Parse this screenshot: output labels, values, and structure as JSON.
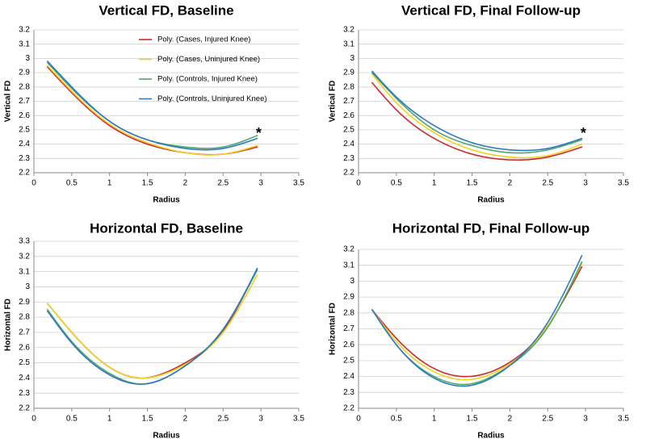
{
  "chart_data": [
    {
      "type": "line",
      "title": "Vertical FD, Baseline",
      "xlabel": "Radius",
      "ylabel": "Vertical FD",
      "xlim": [
        0,
        3.5
      ],
      "ylim": [
        2.2,
        3.2
      ],
      "xticks": [
        0,
        0.5,
        1,
        1.5,
        2,
        2.5,
        3,
        3.5
      ],
      "xtick_labels": [
        "0",
        "0.5",
        "1",
        "1.5",
        "2",
        "2.5",
        "3",
        "3.5"
      ],
      "yticks": [
        2.2,
        2.3,
        2.4,
        2.5,
        2.6,
        2.7,
        2.8,
        2.9,
        3,
        3.1,
        3.2
      ],
      "ytick_labels": [
        "2.2",
        "2.3",
        "2.4",
        "2.5",
        "2.6",
        "2.7",
        "2.8",
        "2.9",
        "3",
        "3.1",
        "3.2"
      ],
      "gridlines": "horizontal",
      "legend_position": "top-right",
      "x": [
        0.18,
        0.5,
        1.0,
        1.5,
        2.0,
        2.5,
        2.95
      ],
      "series": [
        {
          "name": "Poly.  (Cases, Injured Knee)",
          "color": "#cc2a2a",
          "values": [
            2.94,
            2.76,
            2.53,
            2.4,
            2.34,
            2.33,
            2.38
          ]
        },
        {
          "name": "Poly.  (Cases, Uninjured Knee)",
          "color": "#f2d21f",
          "values": [
            2.95,
            2.77,
            2.54,
            2.41,
            2.34,
            2.33,
            2.39
          ]
        },
        {
          "name": "Poly.  (Controls, Injured Knee)",
          "color": "#4ea86b",
          "values": [
            2.97,
            2.79,
            2.56,
            2.43,
            2.38,
            2.38,
            2.46
          ]
        },
        {
          "name": "Poly.  (Controls, Uninjured Knee)",
          "color": "#2f78c4",
          "values": [
            2.98,
            2.8,
            2.56,
            2.43,
            2.37,
            2.37,
            2.44
          ]
        }
      ],
      "annotations": [
        {
          "text": "*",
          "x": 2.97,
          "y": 2.47
        }
      ]
    },
    {
      "type": "line",
      "title": "Vertical FD, Final Follow-up",
      "xlabel": "Radius",
      "ylabel": "Vertical FD",
      "xlim": [
        0,
        3.5
      ],
      "ylim": [
        2.2,
        3.2
      ],
      "xticks": [
        0,
        0.5,
        1,
        1.5,
        2,
        2.5,
        3,
        3.5
      ],
      "xtick_labels": [
        "0",
        "0.5",
        "1",
        "1.5",
        "2",
        "2.5",
        "3",
        "3.5"
      ],
      "yticks": [
        2.2,
        2.3,
        2.4,
        2.5,
        2.6,
        2.7,
        2.8,
        2.9,
        3,
        3.1,
        3.2
      ],
      "ytick_labels": [
        "2.2",
        "2.3",
        "2.4",
        "2.5",
        "2.6",
        "2.7",
        "2.8",
        "2.9",
        "3",
        "3.1",
        "3.2"
      ],
      "gridlines": "horizontal",
      "x": [
        0.18,
        0.5,
        1.0,
        1.5,
        2.0,
        2.5,
        2.95
      ],
      "series": [
        {
          "name": "Cases, Injured Knee",
          "color": "#cc2a2a",
          "values": [
            2.83,
            2.64,
            2.44,
            2.33,
            2.29,
            2.31,
            2.38
          ]
        },
        {
          "name": "Cases, Uninjured Knee",
          "color": "#f2d21f",
          "values": [
            2.89,
            2.69,
            2.48,
            2.36,
            2.31,
            2.32,
            2.4
          ]
        },
        {
          "name": "Controls, Injured Knee",
          "color": "#4ea86b",
          "values": [
            2.9,
            2.72,
            2.5,
            2.39,
            2.34,
            2.36,
            2.43
          ]
        },
        {
          "name": "Controls, Uninjured Knee",
          "color": "#2f78c4",
          "values": [
            2.91,
            2.73,
            2.53,
            2.41,
            2.36,
            2.37,
            2.44
          ]
        }
      ],
      "annotations": [
        {
          "text": "*",
          "x": 2.97,
          "y": 2.47
        }
      ]
    },
    {
      "type": "line",
      "title": "Horizontal FD, Baseline",
      "xlabel": "Radius",
      "ylabel": "Horizontal FD",
      "xlim": [
        0,
        3.5
      ],
      "ylim": [
        2.2,
        3.3
      ],
      "xticks": [
        0,
        0.5,
        1,
        1.5,
        2,
        2.5,
        3,
        3.5
      ],
      "xtick_labels": [
        "0",
        "0.5",
        "1",
        "1.5",
        "2",
        "2.5",
        "3",
        "3.5"
      ],
      "yticks": [
        2.2,
        2.3,
        2.4,
        2.5,
        2.6,
        2.7,
        2.8,
        2.9,
        3,
        3.1,
        3.2,
        3.3
      ],
      "ytick_labels": [
        "2.2",
        "2.3",
        "2.4",
        "2.5",
        "2.6",
        "2.7",
        "2.8",
        "2.9",
        "3",
        "3.1",
        "3.2",
        "3.3"
      ],
      "gridlines": "horizontal",
      "x": [
        0.18,
        0.5,
        1.0,
        1.45,
        2.0,
        2.5,
        2.95
      ],
      "series": [
        {
          "name": "Cases, Injured Knee",
          "color": "#cc2a2a",
          "values": [
            2.89,
            2.7,
            2.47,
            2.4,
            2.5,
            2.71,
            3.12
          ]
        },
        {
          "name": "Cases, Uninjured Knee",
          "color": "#f2d21f",
          "values": [
            2.89,
            2.7,
            2.47,
            2.4,
            2.49,
            2.7,
            3.08
          ]
        },
        {
          "name": "Controls, Injured Knee",
          "color": "#4ea86b",
          "values": [
            2.85,
            2.64,
            2.43,
            2.36,
            2.48,
            2.72,
            3.11
          ]
        },
        {
          "name": "Controls, Uninjured Knee",
          "color": "#2f78c4",
          "values": [
            2.84,
            2.63,
            2.42,
            2.36,
            2.48,
            2.72,
            3.12
          ]
        }
      ]
    },
    {
      "type": "line",
      "title": "Horizontal FD, Final Follow-up",
      "xlabel": "Radius",
      "ylabel": "Horizontal FD",
      "xlim": [
        0,
        3.5
      ],
      "ylim": [
        2.2,
        3.2
      ],
      "xticks": [
        0,
        0.5,
        1,
        1.5,
        2,
        2.5,
        3,
        3.5
      ],
      "xtick_labels": [
        "0",
        "0.5",
        "1",
        "1.5",
        "2",
        "2.5",
        "3",
        "3.5"
      ],
      "yticks": [
        2.2,
        2.3,
        2.4,
        2.5,
        2.6,
        2.7,
        2.8,
        2.9,
        3,
        3.1,
        3.2
      ],
      "ytick_labels": [
        "2.2",
        "2.3",
        "2.4",
        "2.5",
        "2.6",
        "2.7",
        "2.8",
        "2.9",
        "3",
        "3.1",
        "3.2"
      ],
      "gridlines": "horizontal",
      "x": [
        0.18,
        0.5,
        1.0,
        1.4,
        2.0,
        2.5,
        2.95
      ],
      "series": [
        {
          "name": "Cases, Injured Knee",
          "color": "#cc2a2a",
          "values": [
            2.82,
            2.64,
            2.45,
            2.4,
            2.49,
            2.72,
            3.09
          ]
        },
        {
          "name": "Cases, Uninjured Knee",
          "color": "#f2d21f",
          "values": [
            2.82,
            2.62,
            2.43,
            2.38,
            2.48,
            2.72,
            3.11
          ]
        },
        {
          "name": "Controls, Injured Knee",
          "color": "#4ea86b",
          "values": [
            2.82,
            2.6,
            2.4,
            2.35,
            2.47,
            2.71,
            3.12
          ]
        },
        {
          "name": "Controls, Uninjured Knee",
          "color": "#2f78c4",
          "values": [
            2.82,
            2.6,
            2.39,
            2.34,
            2.47,
            2.74,
            3.16
          ]
        }
      ]
    }
  ]
}
